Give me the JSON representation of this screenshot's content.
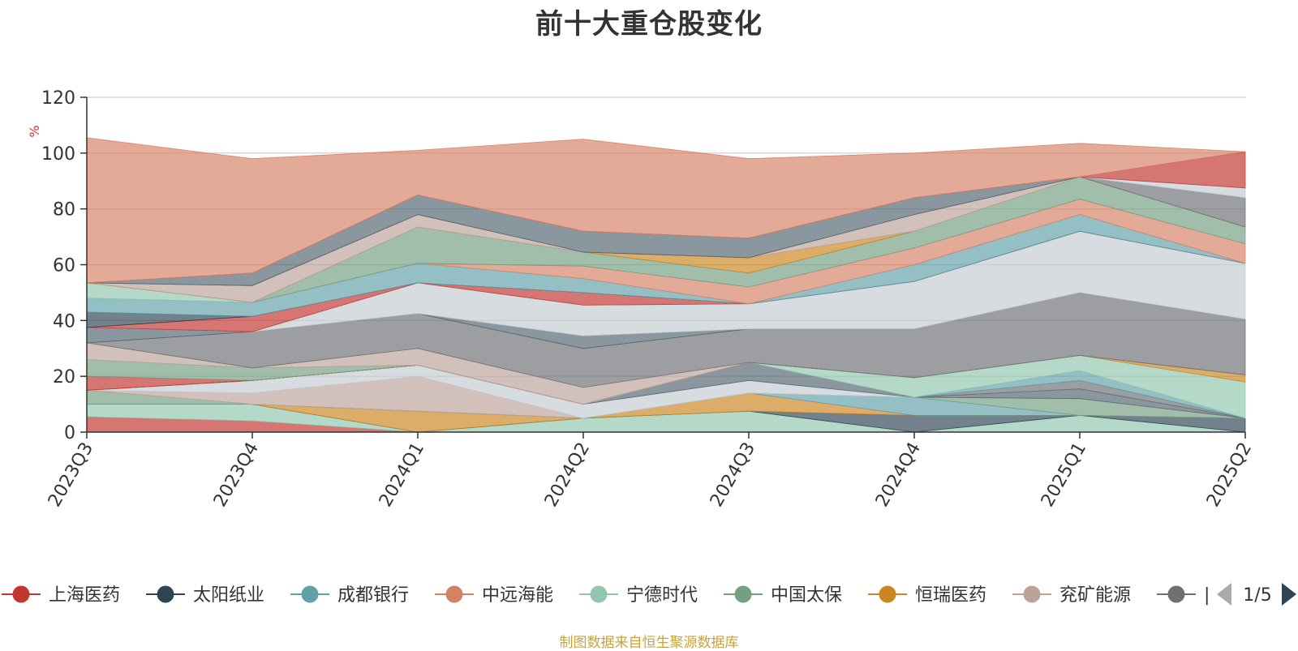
{
  "chart_data": {
    "type": "area",
    "stacked": true,
    "title": "前十大重仓股变化",
    "ylabel": "%",
    "ylim": [
      0,
      120
    ],
    "yticks": [
      0,
      20,
      40,
      60,
      80,
      100,
      120
    ],
    "grid": true,
    "legend_position": "bottom",
    "categories": [
      "2023Q3",
      "2023Q4",
      "2024Q1",
      "2024Q2",
      "2024Q3",
      "2024Q4",
      "2025Q1",
      "2025Q2"
    ],
    "series": [
      {
        "name": "上海医药",
        "color": "#c23531",
        "values": [
          5.5,
          4,
          0,
          0,
          0,
          0,
          0,
          0
        ]
      },
      {
        "name": "宁德时代",
        "color": "#91c7ae",
        "values": [
          4.5,
          6,
          0,
          5,
          7.5,
          0,
          6,
          0
        ]
      },
      {
        "name": "太阳纸业",
        "color": "#2f4554",
        "values": [
          0,
          0,
          0,
          0,
          0,
          6,
          0,
          5
        ]
      },
      {
        "name": "恒瑞医药",
        "color": "#ca8622",
        "values": [
          0,
          0,
          7.5,
          0,
          6.5,
          0,
          0,
          0
        ]
      },
      {
        "name": "成都银行",
        "color": "#61a0a8",
        "values": [
          0,
          0,
          0,
          0,
          0,
          6.5,
          0,
          0
        ]
      },
      {
        "name": "中国太保",
        "color": "#749f83",
        "values": [
          5,
          0,
          0,
          0,
          0,
          0,
          6,
          0
        ]
      },
      {
        "name": "兖矿能源",
        "color": "#bda29a",
        "values": [
          0,
          4,
          12.5,
          0,
          0,
          0,
          0,
          0
        ]
      },
      {
        "name": "",
        "color": "#c4ccd3",
        "values": [
          0,
          4.5,
          4,
          5,
          4.5,
          0,
          0,
          0
        ]
      },
      {
        "name": "",
        "color": "#546570",
        "values": [
          0,
          0,
          0,
          0,
          6.5,
          0,
          3.5,
          0
        ]
      },
      {
        "name": "",
        "color": "#6e7074",
        "values": [
          0,
          0,
          0,
          0,
          0,
          0,
          3,
          0
        ]
      },
      {
        "name": "",
        "color": "#61a0a8",
        "values": [
          0,
          0,
          0,
          0,
          0,
          0,
          3.5,
          0
        ]
      },
      {
        "name": "",
        "color": "#91c7ae",
        "values": [
          0,
          0,
          0,
          0,
          0,
          7,
          5.5,
          13
        ]
      },
      {
        "name": "",
        "color": "#ca8622",
        "values": [
          0,
          0,
          0,
          0,
          0,
          0,
          0,
          2.5
        ]
      },
      {
        "name": "",
        "color": "#c23531",
        "values": [
          5,
          0,
          0,
          0,
          0,
          0,
          0,
          0
        ]
      },
      {
        "name": "",
        "color": "#749f83",
        "values": [
          6,
          4.5,
          0,
          0,
          0,
          0,
          0,
          0
        ]
      },
      {
        "name": "",
        "color": "#bda29a",
        "values": [
          6,
          0,
          6,
          6,
          0,
          0,
          0,
          0
        ]
      },
      {
        "name": "",
        "color": "#6e7074",
        "values": [
          0,
          13,
          12.5,
          14,
          12,
          17.5,
          22.5,
          20
        ]
      },
      {
        "name": "",
        "color": "#546570",
        "values": [
          5.5,
          0,
          0,
          4.5,
          0,
          0,
          0,
          0
        ]
      },
      {
        "name": "",
        "color": "#c4ccd3",
        "values": [
          0,
          0,
          11,
          11,
          9,
          17,
          22,
          20
        ]
      },
      {
        "name": "",
        "color": "#c23531",
        "values": [
          0,
          5.5,
          0,
          4.5,
          0,
          0,
          0,
          0
        ]
      },
      {
        "name": "",
        "color": "#2f4554",
        "values": [
          5.5,
          0,
          0,
          0,
          0,
          0,
          0,
          0
        ]
      },
      {
        "name": "",
        "color": "#61a0a8",
        "values": [
          5,
          5,
          7,
          5,
          0,
          6,
          6,
          0
        ]
      },
      {
        "name": "",
        "color": "#91c7ae",
        "values": [
          5.5,
          0,
          0,
          0,
          0,
          0,
          0,
          0
        ]
      },
      {
        "name": "",
        "color": "#d48265",
        "values": [
          0,
          0,
          0,
          4.5,
          6,
          6,
          5.5,
          7
        ]
      },
      {
        "name": "",
        "color": "#749f83",
        "values": [
          0,
          0,
          13,
          5,
          5,
          6,
          8,
          6
        ]
      },
      {
        "name": "",
        "color": "#ca8622",
        "values": [
          0,
          0,
          0,
          0,
          5.5,
          0,
          0,
          0
        ]
      },
      {
        "name": "",
        "color": "#bda29a",
        "values": [
          0,
          6,
          4.5,
          0,
          0,
          6,
          0,
          0
        ]
      },
      {
        "name": "",
        "color": "#6e7074",
        "values": [
          0,
          0,
          0,
          0,
          0,
          0,
          0,
          10.5
        ]
      },
      {
        "name": "",
        "color": "#546570",
        "values": [
          0,
          4.5,
          7,
          7.5,
          7,
          6,
          0,
          0
        ]
      },
      {
        "name": "",
        "color": "#c4ccd3",
        "values": [
          0,
          0,
          0,
          0,
          0,
          0,
          0,
          3.5
        ]
      },
      {
        "name": "",
        "color": "#c23531",
        "values": [
          0,
          0,
          0,
          0,
          0,
          0,
          0,
          13
        ]
      },
      {
        "name": "中远海能",
        "color": "#d48265",
        "values": [
          52,
          41,
          16,
          33,
          28.5,
          16,
          12,
          0
        ]
      }
    ]
  },
  "legend": {
    "items": [
      {
        "name": "上海医药",
        "color": "#c23531"
      },
      {
        "name": "太阳纸业",
        "color": "#2f4554"
      },
      {
        "name": "成都银行",
        "color": "#61a0a8"
      },
      {
        "name": "中远海能",
        "color": "#d48265"
      },
      {
        "name": "宁德时代",
        "color": "#91c7ae"
      },
      {
        "name": "中国太保",
        "color": "#749f83"
      },
      {
        "name": "恒瑞医药",
        "color": "#ca8622"
      },
      {
        "name": "兖矿能源",
        "color": "#bda29a"
      },
      {
        "name": "",
        "color": "#6e7074"
      }
    ],
    "truncated_label": "|",
    "page_indicator": "1/5"
  },
  "footer": {
    "source_note": "制图数据来自恒生聚源数据库"
  }
}
